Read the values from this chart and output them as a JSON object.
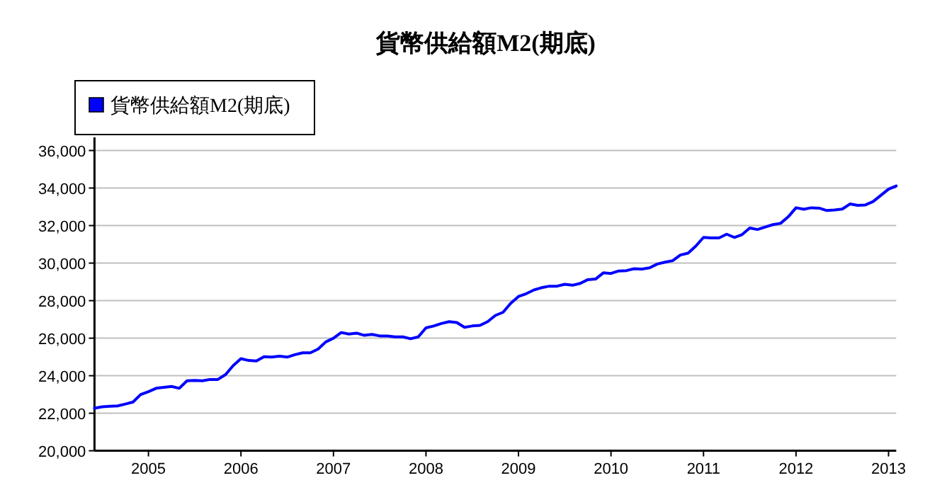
{
  "chart_data": {
    "type": "line",
    "title": "貨幣供給額M2(期底)",
    "legend": "top left",
    "grid": "y",
    "xlim": [
      "2004-06",
      "2013-02"
    ],
    "xticks": [
      "2005",
      "2006",
      "2007",
      "2008",
      "2009",
      "2010",
      "2011",
      "2012",
      "2013"
    ],
    "ylim": [
      20000,
      36700
    ],
    "yticks": [
      {
        "value": 20000,
        "label": "20,000"
      },
      {
        "value": 22000,
        "label": "22,000"
      },
      {
        "value": 24000,
        "label": "24,000"
      },
      {
        "value": 26000,
        "label": "26,000"
      },
      {
        "value": 28000,
        "label": "28,000"
      },
      {
        "value": 30000,
        "label": "30,000"
      },
      {
        "value": 32000,
        "label": "32,000"
      },
      {
        "value": 34000,
        "label": "34,000"
      },
      {
        "value": 36000,
        "label": "36,000"
      }
    ],
    "x": [
      "2004-06",
      "2004-07",
      "2004-08",
      "2004-09",
      "2004-10",
      "2004-11",
      "2004-12",
      "2005-01",
      "2005-02",
      "2005-03",
      "2005-04",
      "2005-05",
      "2005-06",
      "2005-07",
      "2005-08",
      "2005-09",
      "2005-10",
      "2005-11",
      "2005-12",
      "2006-01",
      "2006-02",
      "2006-03",
      "2006-04",
      "2006-05",
      "2006-06",
      "2006-07",
      "2006-08",
      "2006-09",
      "2006-10",
      "2006-11",
      "2006-12",
      "2007-01",
      "2007-02",
      "2007-03",
      "2007-04",
      "2007-05",
      "2007-06",
      "2007-07",
      "2007-08",
      "2007-09",
      "2007-10",
      "2007-11",
      "2007-12",
      "2008-01",
      "2008-02",
      "2008-03",
      "2008-04",
      "2008-05",
      "2008-06",
      "2008-07",
      "2008-08",
      "2008-09",
      "2008-10",
      "2008-11",
      "2008-12",
      "2009-01",
      "2009-02",
      "2009-03",
      "2009-04",
      "2009-05",
      "2009-06",
      "2009-07",
      "2009-08",
      "2009-09",
      "2009-10",
      "2009-11",
      "2009-12",
      "2010-01",
      "2010-02",
      "2010-03",
      "2010-04",
      "2010-05",
      "2010-06",
      "2010-07",
      "2010-08",
      "2010-09",
      "2010-10",
      "2010-11",
      "2010-12",
      "2011-01",
      "2011-02",
      "2011-03",
      "2011-04",
      "2011-05",
      "2011-06",
      "2011-07",
      "2011-08",
      "2011-09",
      "2011-10",
      "2011-11",
      "2011-12",
      "2012-01",
      "2012-02",
      "2012-03",
      "2012-04",
      "2012-05",
      "2012-06",
      "2012-07",
      "2012-08",
      "2012-09",
      "2012-10",
      "2012-11",
      "2012-12",
      "2013-01",
      "2013-02"
    ],
    "series": [
      {
        "name": "貨幣供給額M2(期底)",
        "color": "#0000ff",
        "values": [
          22270,
          22340,
          22370,
          22390,
          22490,
          22600,
          23000,
          23150,
          23330,
          23380,
          23430,
          23330,
          23730,
          23750,
          23730,
          23800,
          23800,
          24060,
          24540,
          24910,
          24810,
          24790,
          25010,
          24990,
          25040,
          24990,
          25120,
          25220,
          25220,
          25420,
          25800,
          26000,
          26300,
          26220,
          26270,
          26150,
          26200,
          26120,
          26120,
          26070,
          26070,
          25970,
          26070,
          26550,
          26650,
          26780,
          26880,
          26830,
          26580,
          26650,
          26680,
          26880,
          27210,
          27380,
          27860,
          28220,
          28370,
          28570,
          28690,
          28770,
          28770,
          28870,
          28820,
          28920,
          29120,
          29150,
          29480,
          29450,
          29580,
          29600,
          29700,
          29680,
          29750,
          29950,
          30050,
          30130,
          30430,
          30530,
          30910,
          31370,
          31340,
          31340,
          31540,
          31370,
          31520,
          31870,
          31790,
          31920,
          32050,
          32120,
          32470,
          32950,
          32870,
          32950,
          32930,
          32800,
          32830,
          32880,
          33150,
          33080,
          33100,
          33280,
          33610,
          33940,
          34110
        ]
      }
    ]
  }
}
